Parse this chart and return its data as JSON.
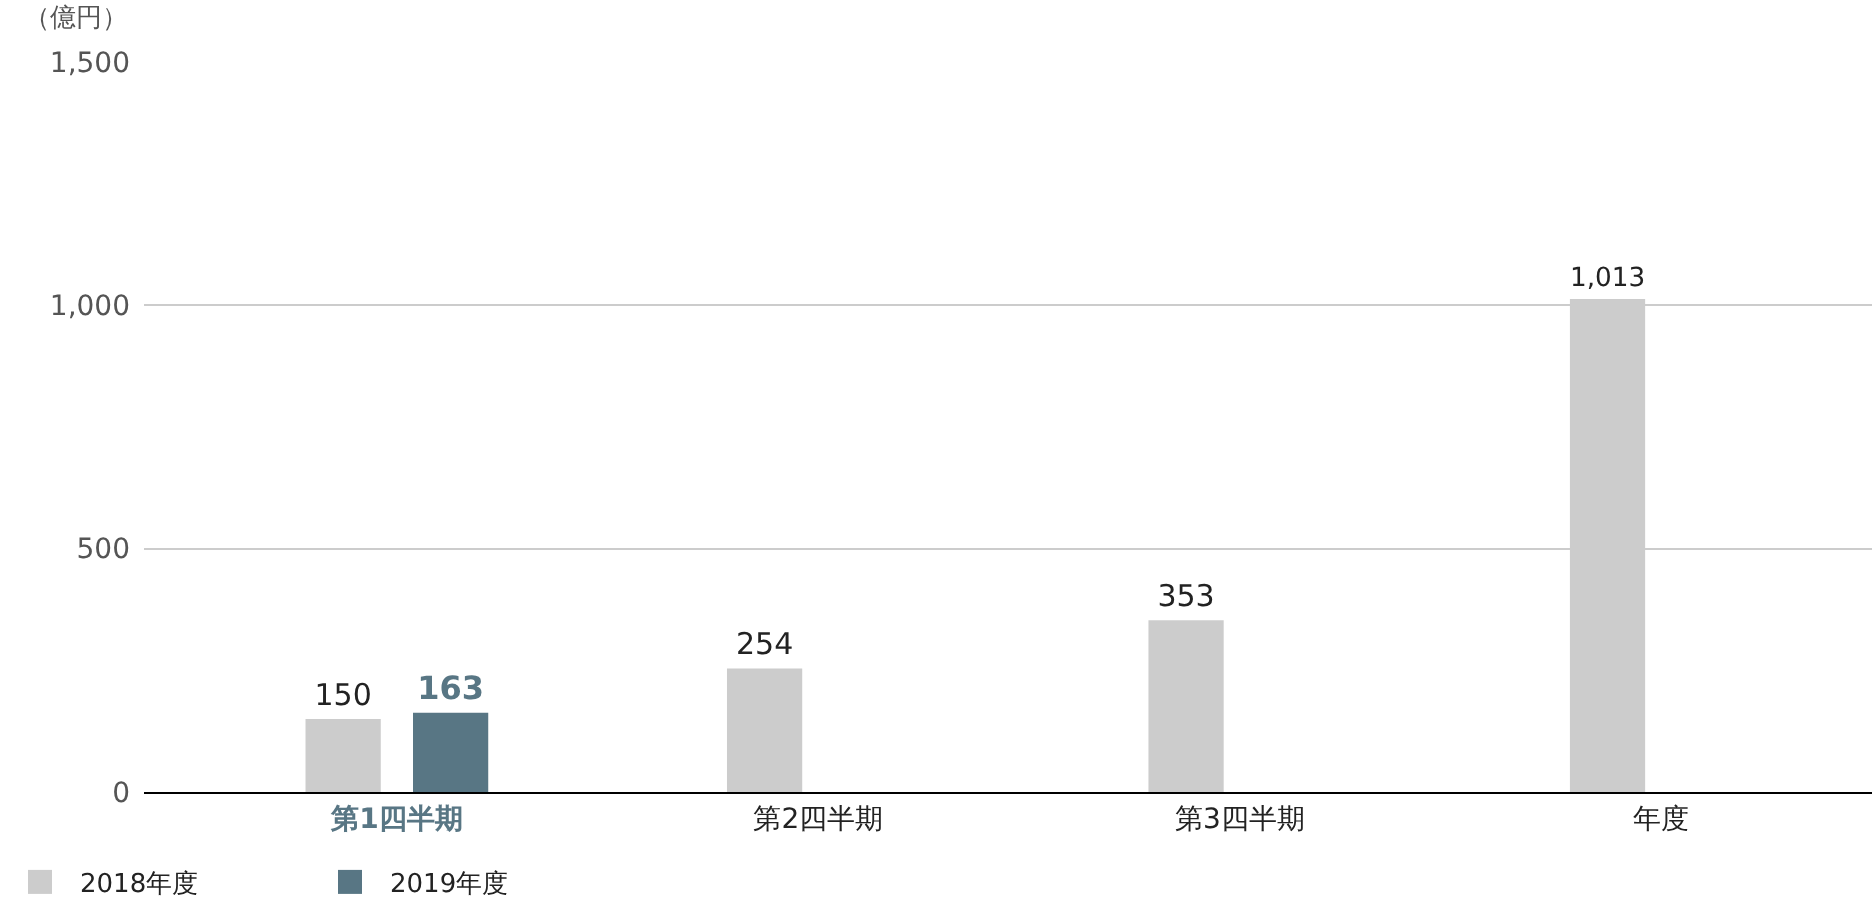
{
  "chart_data": {
    "type": "bar",
    "ylabel": "（億円）",
    "categories": [
      "第1四半期",
      "第2四半期",
      "第3四半期",
      "年度"
    ],
    "series": [
      {
        "name": "2018年度",
        "color": "#cccccc",
        "values": [
          150,
          254,
          353,
          1013
        ],
        "value_labels": [
          "150",
          "254",
          "353",
          "1,013"
        ]
      },
      {
        "name": "2019年度",
        "color": "#587684",
        "values": [
          163,
          null,
          null,
          null
        ],
        "value_labels": [
          "163",
          null,
          null,
          null
        ]
      }
    ],
    "ylim": [
      0,
      1500
    ],
    "yticks": [
      0,
      500,
      {
        "value": 1000,
        "label": "1,000"
      },
      {
        "value": 1500,
        "label": "1,500"
      }
    ],
    "grid": "y",
    "legend": "bottom left"
  }
}
